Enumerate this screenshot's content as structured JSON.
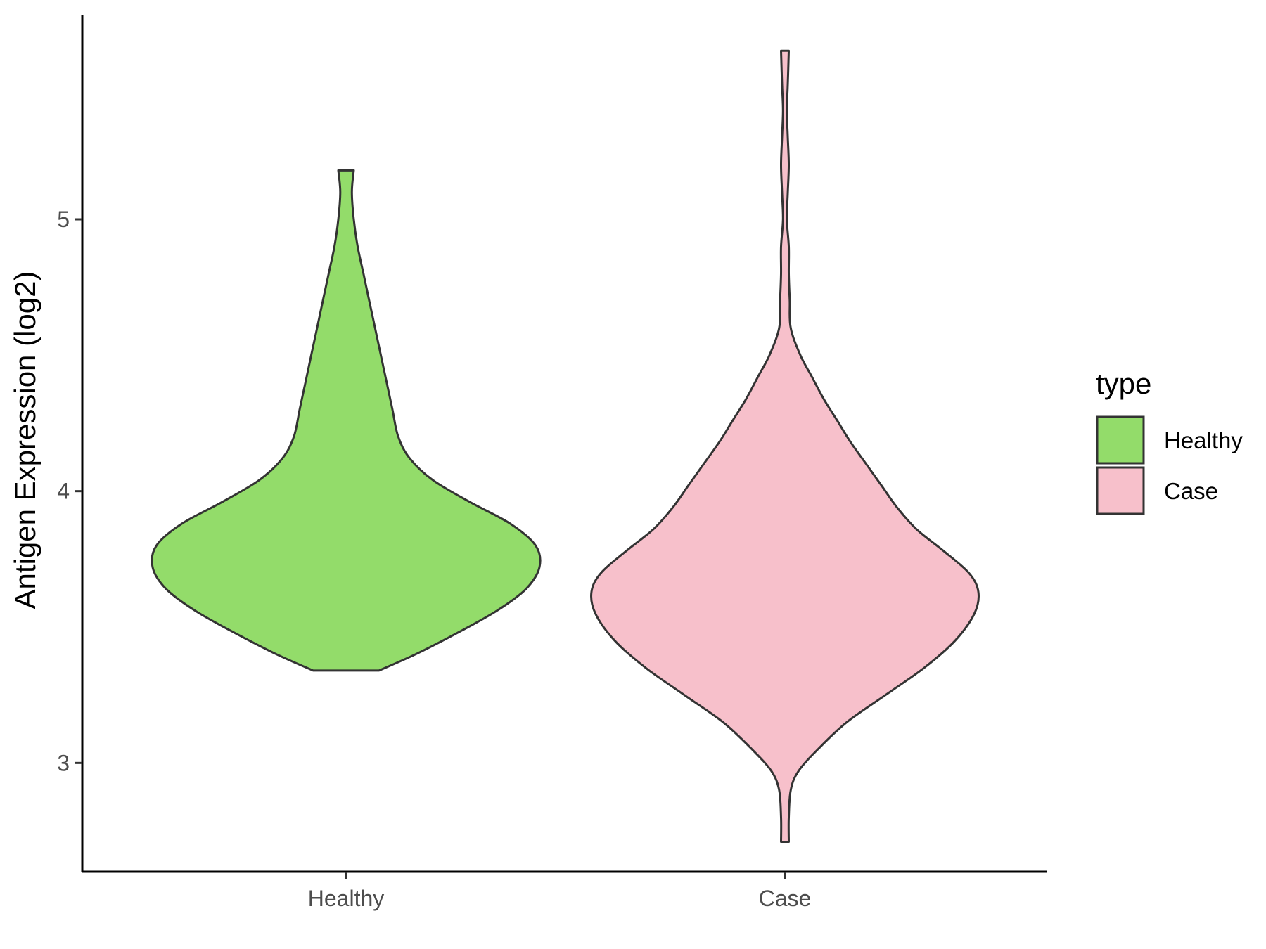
{
  "chart_data": {
    "type": "violin",
    "ylabel": "Antigen Expression (log2)",
    "xlabel": "",
    "categories": [
      "Healthy",
      "Case"
    ],
    "ylim": [
      2.6,
      5.75
    ],
    "yticks": [
      3,
      4,
      5
    ],
    "legend": {
      "title": "type",
      "position": "right",
      "entries": [
        {
          "label": "Healthy",
          "color": "#93dc6a"
        },
        {
          "label": "Case",
          "color": "#f7c0cb"
        }
      ]
    },
    "series": [
      {
        "name": "Healthy",
        "color": "#93dc6a",
        "y_min": 3.34,
        "y_max": 5.18,
        "density": [
          [
            3.34,
            0.17
          ],
          [
            3.4,
            0.36
          ],
          [
            3.48,
            0.58
          ],
          [
            3.56,
            0.78
          ],
          [
            3.64,
            0.93
          ],
          [
            3.72,
            1.0
          ],
          [
            3.8,
            0.98
          ],
          [
            3.88,
            0.85
          ],
          [
            3.96,
            0.64
          ],
          [
            4.04,
            0.45
          ],
          [
            4.12,
            0.33
          ],
          [
            4.2,
            0.27
          ],
          [
            4.3,
            0.24
          ],
          [
            4.4,
            0.21
          ],
          [
            4.5,
            0.18
          ],
          [
            4.6,
            0.15
          ],
          [
            4.7,
            0.12
          ],
          [
            4.8,
            0.09
          ],
          [
            4.9,
            0.06
          ],
          [
            5.0,
            0.04
          ],
          [
            5.1,
            0.03
          ],
          [
            5.18,
            0.04
          ]
        ]
      },
      {
        "name": "Case",
        "color": "#f7c0cb",
        "y_min": 2.71,
        "y_max": 5.62,
        "density": [
          [
            2.71,
            0.02
          ],
          [
            2.8,
            0.02
          ],
          [
            2.9,
            0.03
          ],
          [
            2.97,
            0.07
          ],
          [
            3.05,
            0.17
          ],
          [
            3.15,
            0.32
          ],
          [
            3.25,
            0.52
          ],
          [
            3.35,
            0.72
          ],
          [
            3.45,
            0.88
          ],
          [
            3.55,
            0.98
          ],
          [
            3.63,
            1.0
          ],
          [
            3.7,
            0.95
          ],
          [
            3.78,
            0.82
          ],
          [
            3.86,
            0.68
          ],
          [
            3.94,
            0.58
          ],
          [
            4.02,
            0.5
          ],
          [
            4.1,
            0.42
          ],
          [
            4.18,
            0.34
          ],
          [
            4.26,
            0.27
          ],
          [
            4.34,
            0.2
          ],
          [
            4.42,
            0.14
          ],
          [
            4.5,
            0.08
          ],
          [
            4.6,
            0.03
          ],
          [
            4.7,
            0.025
          ],
          [
            4.8,
            0.02
          ],
          [
            4.9,
            0.02
          ],
          [
            5.0,
            0.01
          ],
          [
            5.1,
            0.015
          ],
          [
            5.2,
            0.02
          ],
          [
            5.3,
            0.015
          ],
          [
            5.4,
            0.01
          ],
          [
            5.5,
            0.015
          ],
          [
            5.62,
            0.02
          ]
        ]
      }
    ]
  }
}
